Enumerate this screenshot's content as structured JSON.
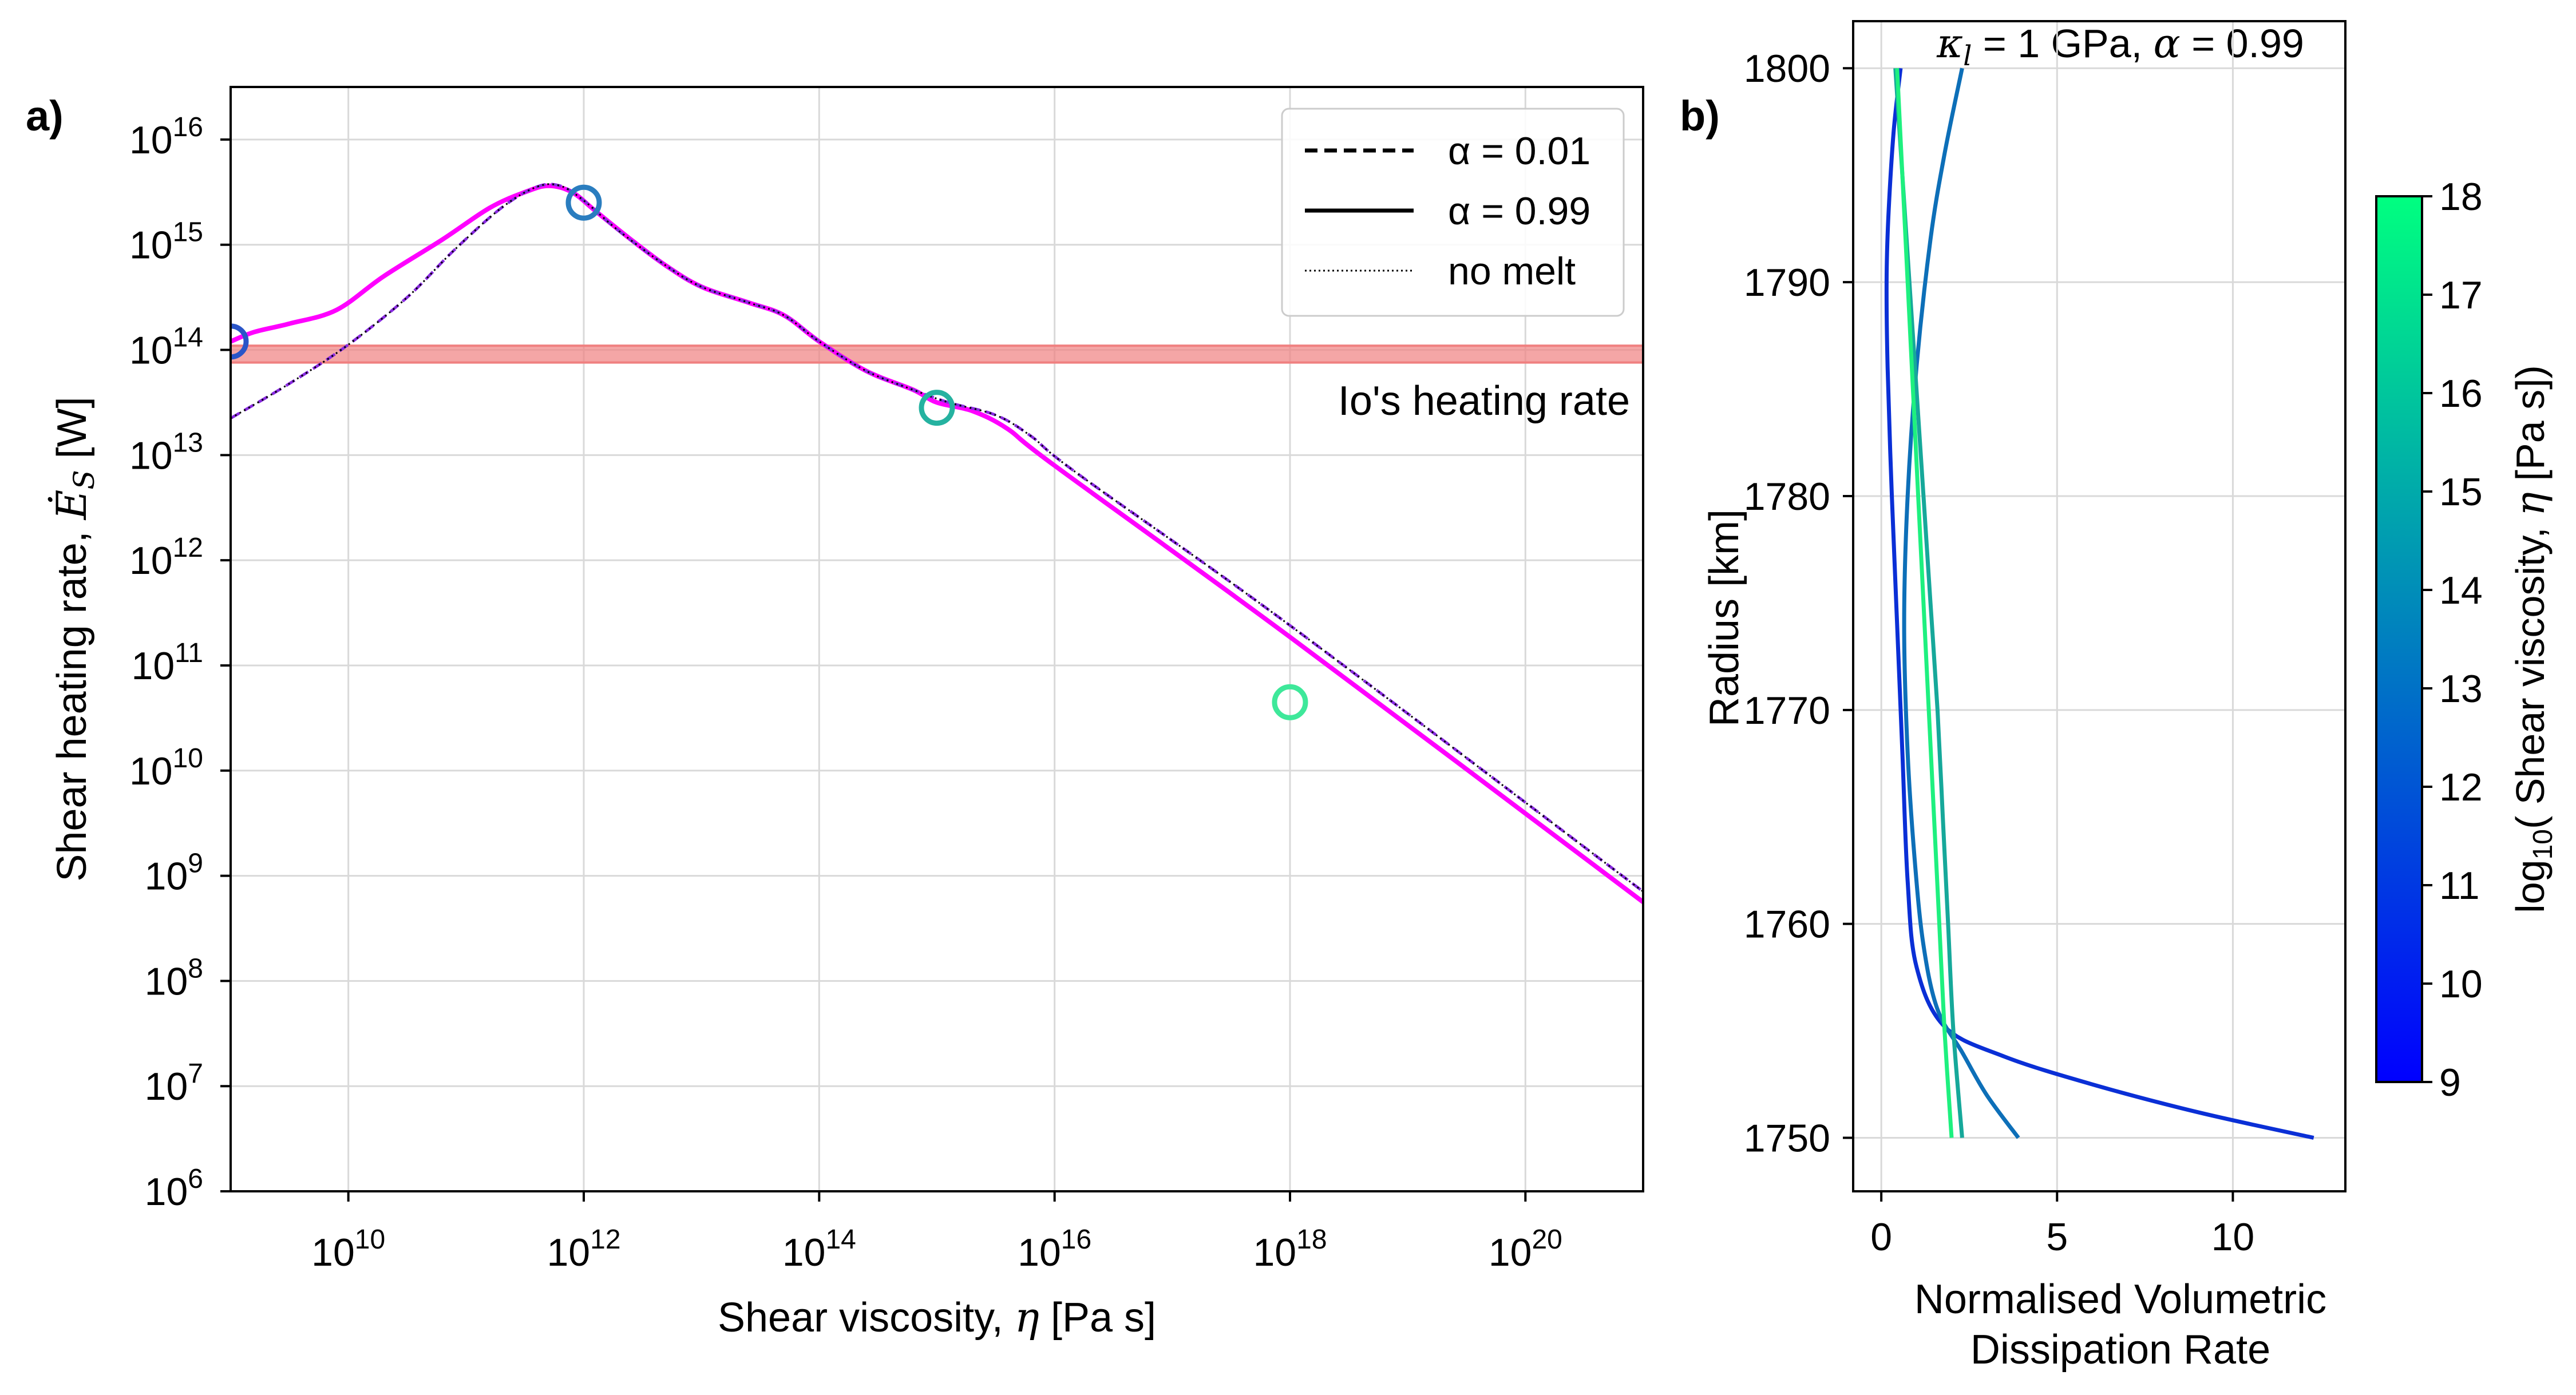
{
  "chart_data": [
    {
      "id": "a",
      "panel_label": "a)",
      "type": "line",
      "title": "",
      "xlabel_pre": "Shear viscosity, ",
      "xlabel_sym": "η",
      "xlabel_post": " [Pa s]",
      "ylabel_pre": "Shear heating rate, ",
      "ylabel_sym": "Ė",
      "ylabel_sub": "S",
      "ylabel_post": " [W]",
      "xscale": "log",
      "yscale": "log",
      "xlim_log10": [
        9,
        21
      ],
      "ylim_log10": [
        6,
        16.5
      ],
      "x_ticks": [
        {
          "base": "10",
          "exp": "10",
          "log10": 10
        },
        {
          "base": "10",
          "exp": "12",
          "log10": 12
        },
        {
          "base": "10",
          "exp": "14",
          "log10": 14
        },
        {
          "base": "10",
          "exp": "16",
          "log10": 16
        },
        {
          "base": "10",
          "exp": "18",
          "log10": 18
        },
        {
          "base": "10",
          "exp": "20",
          "log10": 20
        }
      ],
      "y_ticks": [
        {
          "base": "10",
          "exp": "6",
          "log10": 6
        },
        {
          "base": "10",
          "exp": "7",
          "log10": 7
        },
        {
          "base": "10",
          "exp": "8",
          "log10": 8
        },
        {
          "base": "10",
          "exp": "9",
          "log10": 9
        },
        {
          "base": "10",
          "exp": "10",
          "log10": 10
        },
        {
          "base": "10",
          "exp": "11",
          "log10": 11
        },
        {
          "base": "10",
          "exp": "12",
          "log10": 12
        },
        {
          "base": "10",
          "exp": "13",
          "log10": 13
        },
        {
          "base": "10",
          "exp": "14",
          "log10": 14
        },
        {
          "base": "10",
          "exp": "15",
          "log10": 15
        },
        {
          "base": "10",
          "exp": "16",
          "log10": 16
        }
      ],
      "grid": true,
      "band": {
        "label": "Io's heating rate",
        "ymin_log10": 13.88,
        "ymax_log10": 14.04,
        "color": "#f08080"
      },
      "series": [
        {
          "name": "α = 0.99",
          "style": "solid",
          "color": "#ff00ff",
          "points_log10": [
            [
              9,
              14.08
            ],
            [
              9.2,
              14.17
            ],
            [
              9.5,
              14.25
            ],
            [
              9.9,
              14.38
            ],
            [
              10.3,
              14.7
            ],
            [
              10.8,
              15.05
            ],
            [
              11.2,
              15.35
            ],
            [
              11.5,
              15.5
            ],
            [
              11.7,
              15.56
            ],
            [
              11.9,
              15.5
            ],
            [
              12.1,
              15.32
            ],
            [
              12.4,
              15.05
            ],
            [
              12.7,
              14.8
            ],
            [
              13,
              14.6
            ],
            [
              13.4,
              14.45
            ],
            [
              13.7,
              14.33
            ],
            [
              14,
              14.08
            ],
            [
              14.4,
              13.8
            ],
            [
              14.8,
              13.62
            ],
            [
              15,
              13.5
            ],
            [
              15.3,
              13.42
            ],
            [
              15.6,
              13.25
            ],
            [
              16,
              12.9
            ],
            [
              18,
              11.27
            ],
            [
              21,
              8.75
            ]
          ]
        },
        {
          "name": "α = 0.01",
          "style": "dashed",
          "color": "#8a2be2",
          "points_log10": [
            [
              9,
              13.35
            ],
            [
              9.5,
              13.68
            ],
            [
              10,
              14.05
            ],
            [
              10.5,
              14.5
            ],
            [
              10.9,
              14.95
            ],
            [
              11.3,
              15.35
            ],
            [
              11.6,
              15.55
            ],
            [
              11.8,
              15.56
            ],
            [
              12,
              15.42
            ],
            [
              12.3,
              15.13
            ],
            [
              12.7,
              14.8
            ],
            [
              13,
              14.6
            ],
            [
              13.4,
              14.45
            ],
            [
              13.7,
              14.33
            ],
            [
              14,
              14.08
            ],
            [
              14.4,
              13.8
            ],
            [
              14.8,
              13.62
            ],
            [
              15.1,
              13.5
            ],
            [
              15.5,
              13.38
            ],
            [
              15.8,
              13.18
            ],
            [
              16.2,
              12.82
            ],
            [
              18,
              11.38
            ],
            [
              21,
              8.85
            ]
          ]
        },
        {
          "name": "no melt",
          "style": "dotted",
          "color": "#000000",
          "points_log10": [
            [
              9,
              13.35
            ],
            [
              9.5,
              13.68
            ],
            [
              10,
              14.05
            ],
            [
              10.5,
              14.5
            ],
            [
              10.9,
              14.95
            ],
            [
              11.3,
              15.35
            ],
            [
              11.6,
              15.55
            ],
            [
              11.8,
              15.56
            ],
            [
              12,
              15.42
            ],
            [
              12.3,
              15.13
            ],
            [
              12.7,
              14.8
            ],
            [
              13,
              14.6
            ],
            [
              13.4,
              14.45
            ],
            [
              13.7,
              14.33
            ],
            [
              14,
              14.08
            ],
            [
              14.4,
              13.8
            ],
            [
              14.8,
              13.62
            ],
            [
              15.1,
              13.5
            ],
            [
              15.5,
              13.38
            ],
            [
              15.8,
              13.18
            ],
            [
              16.2,
              12.82
            ],
            [
              18,
              11.38
            ],
            [
              21,
              8.85
            ]
          ]
        }
      ],
      "markers": [
        {
          "x_log10": 9,
          "y_log10": 14.08,
          "color": "#2a55c8"
        },
        {
          "x_log10": 12,
          "y_log10": 15.4,
          "color": "#2a7dbf"
        },
        {
          "x_log10": 15,
          "y_log10": 13.45,
          "color": "#25b2a0"
        },
        {
          "x_log10": 18,
          "y_log10": 10.65,
          "color": "#3ee89a"
        }
      ],
      "legend": {
        "position": "top-right",
        "entries": [
          {
            "label": "α = 0.01",
            "style": "dashed"
          },
          {
            "label": "α = 0.99",
            "style": "solid"
          },
          {
            "label": "no melt",
            "style": "dotted"
          }
        ]
      }
    },
    {
      "id": "b",
      "panel_label": "b)",
      "type": "line",
      "title_sym": "κ",
      "title_sub": "l",
      "title_mid": " = 1 GPa, ",
      "title_sym2": "α",
      "title_post": " = 0.99",
      "xlabel_line1": "Normalised Volumetric",
      "xlabel_line2": "Dissipation Rate",
      "ylabel": "Radius [km]",
      "xlim": [
        -0.8,
        13.2
      ],
      "ylim": [
        1747.5,
        1802.2
      ],
      "x_ticks": [
        0,
        5,
        10
      ],
      "y_ticks": [
        1750,
        1760,
        1770,
        1780,
        1790,
        1800
      ],
      "grid": true,
      "series": [
        {
          "name": "log10 η = 9",
          "color": "#0a2fd6",
          "points": [
            [
              0.55,
              1800
            ],
            [
              0.35,
              1797
            ],
            [
              0.2,
              1793
            ],
            [
              0.15,
              1790
            ],
            [
              0.18,
              1786
            ],
            [
              0.3,
              1780
            ],
            [
              0.45,
              1774
            ],
            [
              0.6,
              1768
            ],
            [
              0.75,
              1762
            ],
            [
              1.0,
              1758
            ],
            [
              1.8,
              1755.2
            ],
            [
              3.5,
              1753.8
            ],
            [
              6,
              1752.5
            ],
            [
              9,
              1751.2
            ],
            [
              12.3,
              1750
            ]
          ]
        },
        {
          "name": "log10 η = 12",
          "color": "#0d6fb8",
          "points": [
            [
              2.3,
              1800
            ],
            [
              1.8,
              1796
            ],
            [
              1.4,
              1792
            ],
            [
              1.0,
              1786
            ],
            [
              0.75,
              1780
            ],
            [
              0.65,
              1774
            ],
            [
              0.75,
              1768
            ],
            [
              0.95,
              1763
            ],
            [
              1.2,
              1759
            ],
            [
              1.6,
              1756
            ],
            [
              2.3,
              1754
            ],
            [
              3.0,
              1752
            ],
            [
              3.9,
              1750
            ]
          ]
        },
        {
          "name": "log10 η = 15",
          "color": "#16a89a",
          "points": [
            [
              0.4,
              1800
            ],
            [
              0.6,
              1795
            ],
            [
              0.8,
              1790
            ],
            [
              1.0,
              1785
            ],
            [
              1.2,
              1780
            ],
            [
              1.4,
              1775
            ],
            [
              1.6,
              1770
            ],
            [
              1.75,
              1765
            ],
            [
              1.9,
              1760
            ],
            [
              2.05,
              1755
            ],
            [
              2.3,
              1750
            ]
          ]
        },
        {
          "name": "log10 η = 18",
          "color": "#1ef07f",
          "points": [
            [
              0.45,
              1800
            ],
            [
              0.6,
              1795
            ],
            [
              0.75,
              1790
            ],
            [
              0.9,
              1785
            ],
            [
              1.05,
              1780
            ],
            [
              1.2,
              1775
            ],
            [
              1.35,
              1770
            ],
            [
              1.5,
              1765
            ],
            [
              1.65,
              1760
            ],
            [
              1.8,
              1755
            ],
            [
              2.0,
              1750
            ]
          ]
        }
      ],
      "colorbar": {
        "label_pre": "log",
        "label_sub": "10",
        "label_mid": "( Shear viscosity, ",
        "label_sym": "η",
        "label_post": " [Pa s])",
        "min": 9,
        "max": 18,
        "ticks": [
          9,
          10,
          11,
          12,
          13,
          14,
          15,
          16,
          17,
          18
        ],
        "colors": [
          "#0000ff",
          "#00ff80"
        ]
      }
    }
  ]
}
